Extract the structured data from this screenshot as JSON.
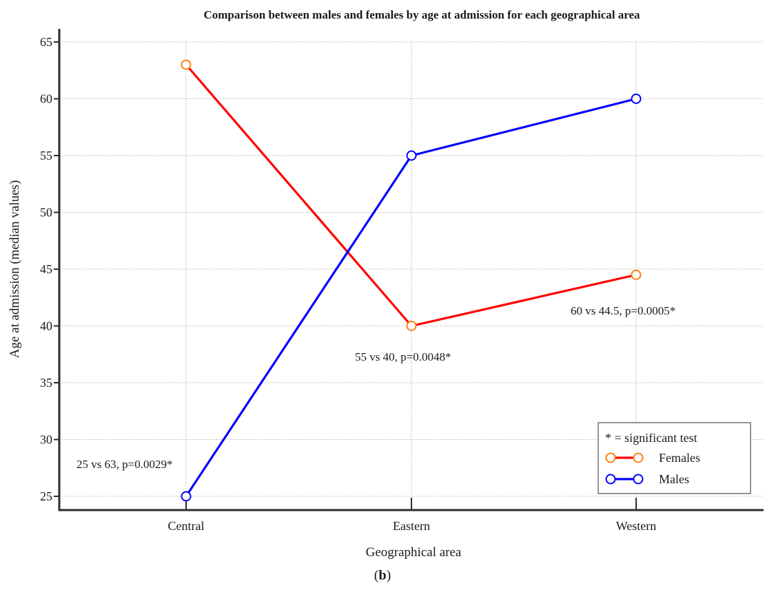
{
  "panel_label": {
    "open": "(",
    "letter": "b",
    "close": ")"
  },
  "chart_data": {
    "type": "line",
    "title": "Comparison between males and females by age at admission for each geographical area",
    "xlabel": "Geographical area",
    "ylabel": "Age at admission (median values)",
    "categories": [
      "Central",
      "Eastern",
      "Western"
    ],
    "ylim": [
      24,
      66
    ],
    "yticks": [
      25,
      30,
      35,
      40,
      45,
      50,
      55,
      60,
      65
    ],
    "grid": true,
    "series": [
      {
        "name": "Females",
        "values": [
          63,
          40,
          44.5
        ],
        "line_color": "#ff0000",
        "marker_color": "#ff7f0e"
      },
      {
        "name": "Males",
        "values": [
          25,
          55,
          60
        ],
        "line_color": "#0000ff",
        "marker_color": "#0000ff"
      }
    ],
    "annotations": [
      {
        "text": "25 vs 63, p=0.0029*",
        "category": "Central"
      },
      {
        "text": "55 vs 40, p=0.0048*",
        "category": "Eastern"
      },
      {
        "text": "60 vs 44.5, p=0.0005*",
        "category": "Western"
      }
    ],
    "legend": {
      "position": "bottom-right",
      "header": "* = significant test",
      "entries": [
        "Females",
        "Males"
      ]
    }
  }
}
